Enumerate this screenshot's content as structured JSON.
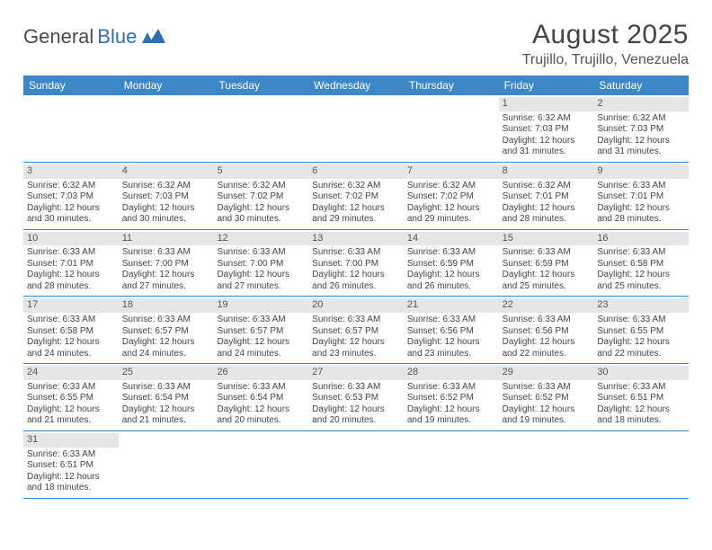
{
  "logo": {
    "part1": "General",
    "part2": "Blue"
  },
  "title": "August 2025",
  "location": "Trujillo, Trujillo, Venezuela",
  "colors": {
    "header_bg": "#3d87c7",
    "header_text": "#ffffff",
    "daynum_bg": "#e6e6e6",
    "border": "#3d87c7",
    "logo_blue": "#2f6fb0",
    "text": "#444444"
  },
  "day_headers": [
    "Sunday",
    "Monday",
    "Tuesday",
    "Wednesday",
    "Thursday",
    "Friday",
    "Saturday"
  ],
  "weeks": [
    [
      null,
      null,
      null,
      null,
      null,
      {
        "n": "1",
        "sr": "6:32 AM",
        "ss": "7:03 PM",
        "dl": "12 hours and 31 minutes."
      },
      {
        "n": "2",
        "sr": "6:32 AM",
        "ss": "7:03 PM",
        "dl": "12 hours and 31 minutes."
      }
    ],
    [
      {
        "n": "3",
        "sr": "6:32 AM",
        "ss": "7:03 PM",
        "dl": "12 hours and 30 minutes."
      },
      {
        "n": "4",
        "sr": "6:32 AM",
        "ss": "7:03 PM",
        "dl": "12 hours and 30 minutes."
      },
      {
        "n": "5",
        "sr": "6:32 AM",
        "ss": "7:02 PM",
        "dl": "12 hours and 30 minutes."
      },
      {
        "n": "6",
        "sr": "6:32 AM",
        "ss": "7:02 PM",
        "dl": "12 hours and 29 minutes."
      },
      {
        "n": "7",
        "sr": "6:32 AM",
        "ss": "7:02 PM",
        "dl": "12 hours and 29 minutes."
      },
      {
        "n": "8",
        "sr": "6:32 AM",
        "ss": "7:01 PM",
        "dl": "12 hours and 28 minutes."
      },
      {
        "n": "9",
        "sr": "6:33 AM",
        "ss": "7:01 PM",
        "dl": "12 hours and 28 minutes."
      }
    ],
    [
      {
        "n": "10",
        "sr": "6:33 AM",
        "ss": "7:01 PM",
        "dl": "12 hours and 28 minutes."
      },
      {
        "n": "11",
        "sr": "6:33 AM",
        "ss": "7:00 PM",
        "dl": "12 hours and 27 minutes."
      },
      {
        "n": "12",
        "sr": "6:33 AM",
        "ss": "7:00 PM",
        "dl": "12 hours and 27 minutes."
      },
      {
        "n": "13",
        "sr": "6:33 AM",
        "ss": "7:00 PM",
        "dl": "12 hours and 26 minutes."
      },
      {
        "n": "14",
        "sr": "6:33 AM",
        "ss": "6:59 PM",
        "dl": "12 hours and 26 minutes."
      },
      {
        "n": "15",
        "sr": "6:33 AM",
        "ss": "6:59 PM",
        "dl": "12 hours and 25 minutes."
      },
      {
        "n": "16",
        "sr": "6:33 AM",
        "ss": "6:58 PM",
        "dl": "12 hours and 25 minutes."
      }
    ],
    [
      {
        "n": "17",
        "sr": "6:33 AM",
        "ss": "6:58 PM",
        "dl": "12 hours and 24 minutes."
      },
      {
        "n": "18",
        "sr": "6:33 AM",
        "ss": "6:57 PM",
        "dl": "12 hours and 24 minutes."
      },
      {
        "n": "19",
        "sr": "6:33 AM",
        "ss": "6:57 PM",
        "dl": "12 hours and 24 minutes."
      },
      {
        "n": "20",
        "sr": "6:33 AM",
        "ss": "6:57 PM",
        "dl": "12 hours and 23 minutes."
      },
      {
        "n": "21",
        "sr": "6:33 AM",
        "ss": "6:56 PM",
        "dl": "12 hours and 23 minutes."
      },
      {
        "n": "22",
        "sr": "6:33 AM",
        "ss": "6:56 PM",
        "dl": "12 hours and 22 minutes."
      },
      {
        "n": "23",
        "sr": "6:33 AM",
        "ss": "6:55 PM",
        "dl": "12 hours and 22 minutes."
      }
    ],
    [
      {
        "n": "24",
        "sr": "6:33 AM",
        "ss": "6:55 PM",
        "dl": "12 hours and 21 minutes."
      },
      {
        "n": "25",
        "sr": "6:33 AM",
        "ss": "6:54 PM",
        "dl": "12 hours and 21 minutes."
      },
      {
        "n": "26",
        "sr": "6:33 AM",
        "ss": "6:54 PM",
        "dl": "12 hours and 20 minutes."
      },
      {
        "n": "27",
        "sr": "6:33 AM",
        "ss": "6:53 PM",
        "dl": "12 hours and 20 minutes."
      },
      {
        "n": "28",
        "sr": "6:33 AM",
        "ss": "6:52 PM",
        "dl": "12 hours and 19 minutes."
      },
      {
        "n": "29",
        "sr": "6:33 AM",
        "ss": "6:52 PM",
        "dl": "12 hours and 19 minutes."
      },
      {
        "n": "30",
        "sr": "6:33 AM",
        "ss": "6:51 PM",
        "dl": "12 hours and 18 minutes."
      }
    ],
    [
      {
        "n": "31",
        "sr": "6:33 AM",
        "ss": "6:51 PM",
        "dl": "12 hours and 18 minutes."
      },
      null,
      null,
      null,
      null,
      null,
      null
    ]
  ],
  "labels": {
    "sunrise": "Sunrise:",
    "sunset": "Sunset:",
    "daylight": "Daylight:"
  }
}
